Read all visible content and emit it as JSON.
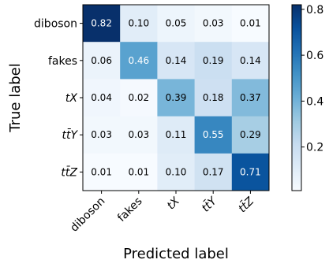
{
  "chart_data": {
    "type": "heatmap",
    "xlabel": "Predicted label",
    "ylabel": "True label",
    "rows": [
      "diboson",
      "fakes",
      "tX",
      "tt̄Y",
      "tt̄Z"
    ],
    "cols": [
      "diboson",
      "fakes",
      "tX",
      "tt̄Y",
      "tt̄Z"
    ],
    "italic_labels": [
      false,
      false,
      true,
      true,
      true
    ],
    "values": [
      [
        0.82,
        0.1,
        0.05,
        0.03,
        0.01
      ],
      [
        0.06,
        0.46,
        0.14,
        0.19,
        0.14
      ],
      [
        0.04,
        0.02,
        0.39,
        0.18,
        0.37
      ],
      [
        0.03,
        0.03,
        0.11,
        0.55,
        0.29
      ],
      [
        0.01,
        0.01,
        0.1,
        0.17,
        0.71
      ]
    ],
    "cell_labels": [
      [
        "0.82",
        "0.10",
        "0.05",
        "0.03",
        "0.01"
      ],
      [
        "0.06",
        "0.46",
        "0.14",
        "0.19",
        "0.14"
      ],
      [
        "0.04",
        "0.02",
        "0.39",
        "0.18",
        "0.37"
      ],
      [
        "0.03",
        "0.03",
        "0.11",
        "0.55",
        "0.29"
      ],
      [
        "0.01",
        "0.01",
        "0.10",
        "0.17",
        "0.71"
      ]
    ],
    "colormap": "Blues",
    "vmin": 0.01,
    "vmax": 0.82,
    "colorbar_ticks": [
      0.2,
      0.4,
      0.6,
      0.8
    ],
    "colorbar_tick_labels": [
      "0.2",
      "0.4",
      "0.6",
      "0.8"
    ]
  }
}
